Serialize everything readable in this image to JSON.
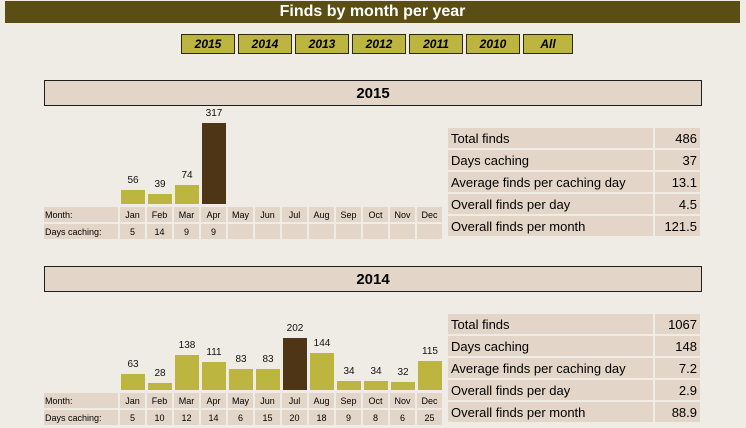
{
  "title": "Finds by month per year",
  "nav": {
    "buttons": [
      "2015",
      "2014",
      "2013",
      "2012",
      "2011",
      "2010",
      "All"
    ]
  },
  "labels": {
    "month_row": "Month:",
    "days_row": "Days caching:"
  },
  "months": [
    "Jan",
    "Feb",
    "Mar",
    "Apr",
    "May",
    "Jun",
    "Jul",
    "Aug",
    "Sep",
    "Oct",
    "Nov",
    "Dec"
  ],
  "colors": {
    "bar": "#bcb53f",
    "bar_max": "#4d3515",
    "header_bg": "#5b4e15",
    "cell_bg": "#e3d6c8"
  },
  "years": [
    {
      "year": "2015",
      "chart_data": {
        "type": "bar",
        "categories": [
          "Jan",
          "Feb",
          "Mar",
          "Apr",
          "May",
          "Jun",
          "Jul",
          "Aug",
          "Sep",
          "Oct",
          "Nov",
          "Dec"
        ],
        "values": [
          56,
          39,
          74,
          317,
          null,
          null,
          null,
          null,
          null,
          null,
          null,
          null
        ],
        "days_caching": [
          "5",
          "14",
          "9",
          "9",
          "",
          "",
          "",
          "",
          "",
          "",
          "",
          ""
        ]
      },
      "stats": [
        {
          "label": "Total finds",
          "value": "486"
        },
        {
          "label": "Days caching",
          "value": "37"
        },
        {
          "label": "Average finds per caching day",
          "value": "13.1"
        },
        {
          "label": "Overall finds per day",
          "value": "4.5"
        },
        {
          "label": "Overall finds per month",
          "value": "121.5"
        }
      ]
    },
    {
      "year": "2014",
      "chart_data": {
        "type": "bar",
        "categories": [
          "Jan",
          "Feb",
          "Mar",
          "Apr",
          "May",
          "Jun",
          "Jul",
          "Aug",
          "Sep",
          "Oct",
          "Nov",
          "Dec"
        ],
        "values": [
          63,
          28,
          138,
          111,
          83,
          83,
          202,
          144,
          34,
          34,
          32,
          115
        ],
        "days_caching": [
          "5",
          "10",
          "12",
          "14",
          "6",
          "15",
          "20",
          "18",
          "9",
          "8",
          "6",
          "25"
        ]
      },
      "stats": [
        {
          "label": "Total finds",
          "value": "1067"
        },
        {
          "label": "Days caching",
          "value": "148"
        },
        {
          "label": "Average finds per caching day",
          "value": "7.2"
        },
        {
          "label": "Overall finds per day",
          "value": "2.9"
        },
        {
          "label": "Overall finds per month",
          "value": "88.9"
        }
      ]
    }
  ]
}
